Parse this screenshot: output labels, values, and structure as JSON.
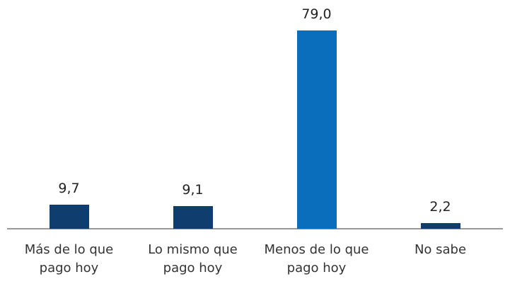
{
  "chart_data": {
    "type": "bar",
    "categories": [
      "Más de lo que pago hoy",
      "Lo mismo que pago hoy",
      "Menos de lo que pago hoy",
      "No sabe"
    ],
    "values": [
      9.7,
      9.1,
      79.0,
      2.2
    ],
    "value_labels": [
      "9,7",
      "9,1",
      "79,0",
      "2,2"
    ],
    "colors": [
      "#0f3d6e",
      "#0f3d6e",
      "#0a6ebd",
      "#0f3d6e"
    ]
  }
}
